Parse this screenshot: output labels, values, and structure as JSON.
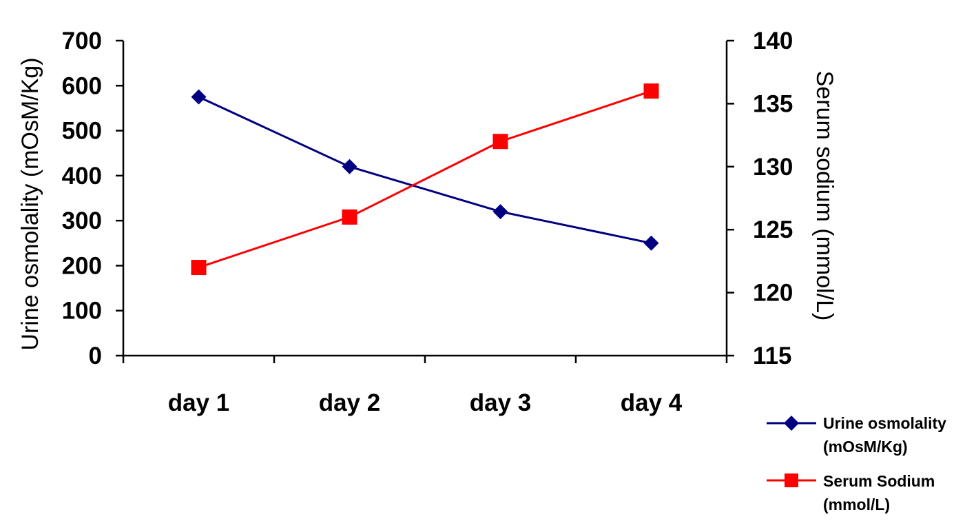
{
  "chart_data": {
    "type": "line",
    "categories": [
      "day 1",
      "day 2",
      "day 3",
      "day 4"
    ],
    "ylabel": "Urine osmolality (mOsM/Kg)",
    "y2label": "Serum sodium (mmol/L)",
    "ylim": [
      0,
      700
    ],
    "y2lim": [
      115,
      140
    ],
    "yticks": [
      "0",
      "100",
      "200",
      "300",
      "400",
      "500",
      "600",
      "700"
    ],
    "y2ticks": [
      "115",
      "120",
      "125",
      "130",
      "135",
      "140"
    ],
    "series": [
      {
        "name_line1": "Urine osmolality",
        "name_line2": "(mOsM/Kg)",
        "axis": "left",
        "marker": "diamond",
        "color": "#000080",
        "values": [
          575,
          420,
          320,
          250
        ]
      },
      {
        "name_line1": "Serum Sodium",
        "name_line2": "(mmol/L)",
        "axis": "right",
        "marker": "square",
        "color": "#ff0000",
        "values": [
          122,
          126,
          132,
          136
        ]
      }
    ],
    "grid": false,
    "legend": "bottom-right"
  }
}
